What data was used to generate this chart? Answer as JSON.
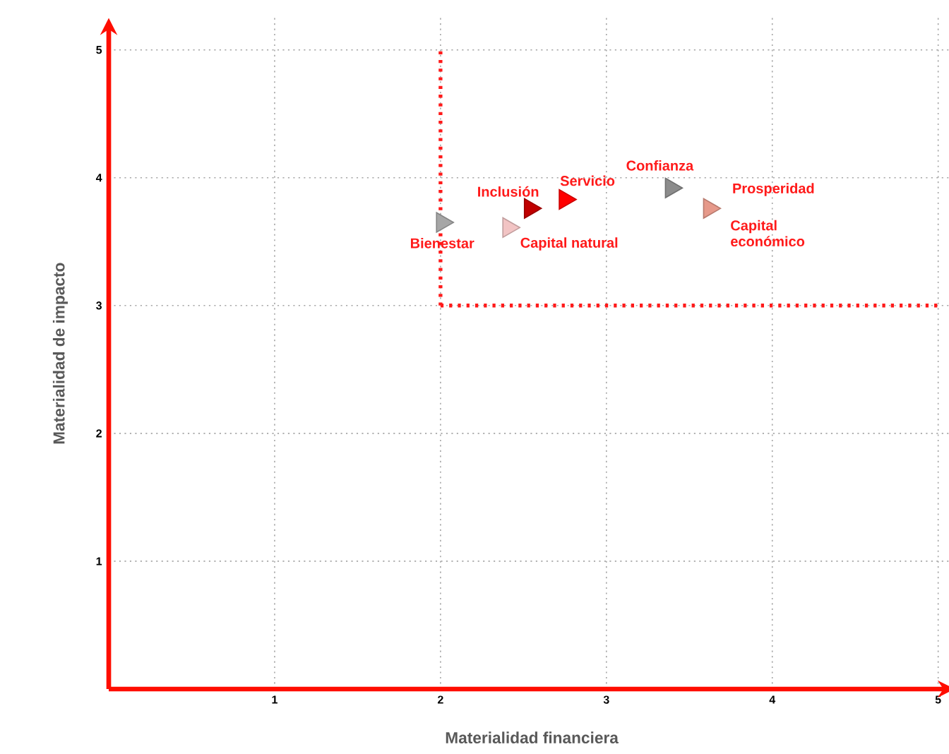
{
  "chart_data": {
    "type": "scatter",
    "xlabel": "Materialidad financiera",
    "ylabel": "Materialidad de impacto",
    "xlim": [
      0,
      5.1
    ],
    "ylim": [
      0,
      5.25
    ],
    "xticks": [
      1,
      2,
      3,
      4,
      5
    ],
    "yticks": [
      1,
      2,
      3,
      4,
      5
    ],
    "grid": true,
    "marker": "triangle",
    "series": [
      {
        "name": "Bienestar",
        "color": "#a6a6a6",
        "x": [
          2.01
        ],
        "values": [
          3.65
        ]
      },
      {
        "name": "Capital natural",
        "color": "#f2c4c4",
        "x": [
          2.41
        ],
        "values": [
          3.61
        ]
      },
      {
        "name": "Inclusión",
        "color": "#c00000",
        "x": [
          2.54
        ],
        "values": [
          3.76
        ]
      },
      {
        "name": "Servicio",
        "color": "#ff0000",
        "x": [
          2.75
        ],
        "values": [
          3.83
        ]
      },
      {
        "name": "Confianza",
        "color": "#8c8c8c",
        "x": [
          3.39
        ],
        "values": [
          3.92
        ]
      },
      {
        "name": "Capital económico",
        "color": "#e6998a",
        "x": [
          3.62
        ],
        "values": [
          3.76
        ]
      }
    ],
    "annotations": [
      {
        "text": "Prosperidad",
        "x": 3.62,
        "y": 3.76
      }
    ],
    "ref_lines": [
      {
        "axis": "x",
        "value": 2,
        "color": "#ff1a1a",
        "line_style": "dotted"
      },
      {
        "axis": "y",
        "value": 3,
        "color": "#ff1a1a",
        "line_style": "dotted"
      }
    ]
  }
}
